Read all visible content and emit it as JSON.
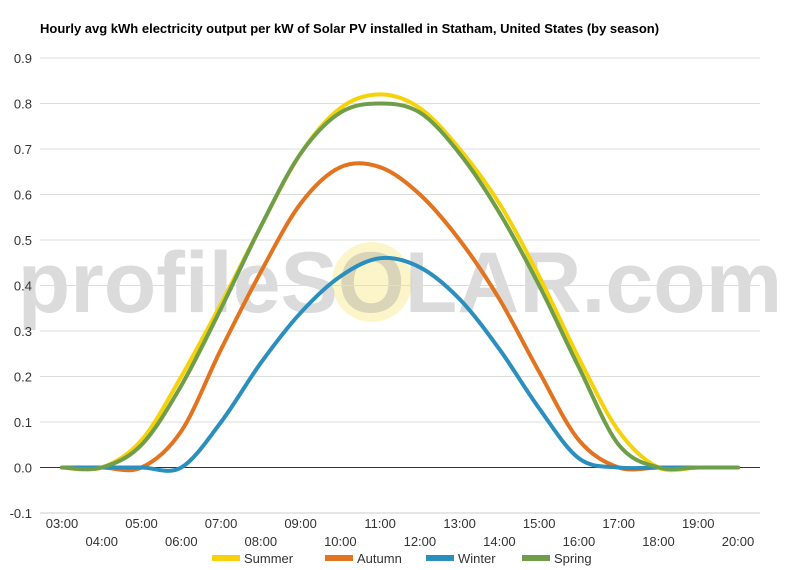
{
  "chart_data": {
    "type": "line",
    "title": "Hourly avg kWh electricity output per kW of Solar PV installed in Statham, United States (by season)",
    "xlabel": "",
    "ylabel": "",
    "watermark": "profileSOLAR.com",
    "x_categories": [
      "03:00",
      "04:00",
      "05:00",
      "06:00",
      "07:00",
      "08:00",
      "09:00",
      "10:00",
      "11:00",
      "12:00",
      "13:00",
      "14:00",
      "15:00",
      "16:00",
      "17:00",
      "18:00",
      "19:00",
      "20:00"
    ],
    "y_ticks": [
      "-0.1",
      "0.0",
      "0.1",
      "0.2",
      "0.3",
      "0.4",
      "0.5",
      "0.6",
      "0.7",
      "0.8",
      "0.9"
    ],
    "ylim": [
      -0.1,
      0.9
    ],
    "grid": true,
    "legend_position": "bottom",
    "series": [
      {
        "name": "Summer",
        "color": "#f5d20a",
        "values": [
          0.0,
          0.0,
          0.06,
          0.2,
          0.36,
          0.53,
          0.69,
          0.79,
          0.82,
          0.79,
          0.7,
          0.58,
          0.42,
          0.24,
          0.08,
          0.0,
          0.0,
          0.0
        ]
      },
      {
        "name": "Autumn",
        "color": "#e2731f",
        "values": [
          0.0,
          0.0,
          0.0,
          0.08,
          0.26,
          0.43,
          0.58,
          0.66,
          0.66,
          0.6,
          0.5,
          0.37,
          0.21,
          0.06,
          0.0,
          0.0,
          0.0,
          0.0
        ]
      },
      {
        "name": "Winter",
        "color": "#2a8fbd",
        "values": [
          0.0,
          0.0,
          0.0,
          0.0,
          0.1,
          0.23,
          0.34,
          0.42,
          0.46,
          0.44,
          0.37,
          0.26,
          0.13,
          0.02,
          0.0,
          0.0,
          0.0,
          0.0
        ]
      },
      {
        "name": "Spring",
        "color": "#6f9e4b",
        "values": [
          0.0,
          0.0,
          0.05,
          0.18,
          0.35,
          0.53,
          0.69,
          0.78,
          0.8,
          0.78,
          0.69,
          0.56,
          0.4,
          0.22,
          0.05,
          0.0,
          0.0,
          0.0
        ]
      }
    ]
  }
}
